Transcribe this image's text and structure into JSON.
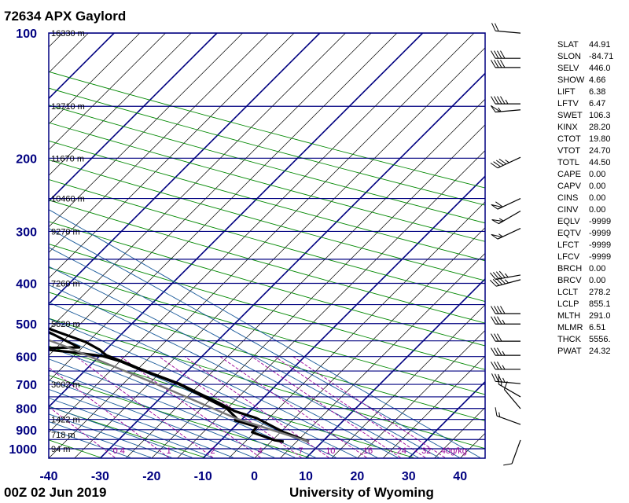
{
  "header": {
    "title": "72634 APX Gaylord"
  },
  "footer": {
    "date": "00Z 02 Jun 2019",
    "source": "University of Wyoming"
  },
  "stats": [
    {
      "k": "SLAT",
      "v": "44.91"
    },
    {
      "k": "SLON",
      "v": "-84.71"
    },
    {
      "k": "SELV",
      "v": "446.0"
    },
    {
      "k": "SHOW",
      "v": "4.66"
    },
    {
      "k": "LIFT",
      "v": "6.38"
    },
    {
      "k": "LFTV",
      "v": "6.47"
    },
    {
      "k": "SWET",
      "v": "106.3"
    },
    {
      "k": "KINX",
      "v": "28.20"
    },
    {
      "k": "CTOT",
      "v": "19.80"
    },
    {
      "k": "VTOT",
      "v": "24.70"
    },
    {
      "k": "TOTL",
      "v": "44.50"
    },
    {
      "k": "CAPE",
      "v": "0.00"
    },
    {
      "k": "CAPV",
      "v": "0.00"
    },
    {
      "k": "CINS",
      "v": "0.00"
    },
    {
      "k": "CINV",
      "v": "0.00"
    },
    {
      "k": "EQLV",
      "v": "-9999"
    },
    {
      "k": "EQTV",
      "v": "-9999"
    },
    {
      "k": "LFCT",
      "v": "-9999"
    },
    {
      "k": "LFCV",
      "v": "-9999"
    },
    {
      "k": "BRCH",
      "v": "0.00"
    },
    {
      "k": "BRCV",
      "v": "0.00"
    },
    {
      "k": "LCLT",
      "v": "278.2"
    },
    {
      "k": "LCLP",
      "v": "855.1"
    },
    {
      "k": "MLTH",
      "v": "291.0"
    },
    {
      "k": "MLMR",
      "v": "6.51"
    },
    {
      "k": "THCK",
      "v": "5556."
    },
    {
      "k": "PWAT",
      "v": "24.32"
    }
  ],
  "colors": {
    "axis": "#000080",
    "isobar": "#000080",
    "isotherm": "#000000",
    "dry_adiabat": "#008800",
    "moist_adiabat": "#1a5a9a",
    "mixing_ratio": "#990099",
    "trace": "#000000",
    "parcel": "#777777"
  },
  "chart_data": {
    "type": "line",
    "subtype": "skew-t log-p",
    "xlabel": "Temperature (C)",
    "ylabel": "Pressure (hPa)",
    "xlim": [
      -40,
      45
    ],
    "ylim": [
      1000,
      100
    ],
    "x_ticks": [
      "-40",
      "-30",
      "-20",
      "-10",
      "0",
      "10",
      "20",
      "30",
      "40"
    ],
    "x_tick_values": [
      -40,
      -30,
      -20,
      -10,
      0,
      10,
      20,
      30,
      40
    ],
    "y_ticks": [
      "100",
      "200",
      "300",
      "400",
      "500",
      "600",
      "700",
      "800",
      "900",
      "1000"
    ],
    "y_tick_values": [
      100,
      200,
      300,
      400,
      500,
      600,
      700,
      800,
      900,
      1000
    ],
    "height_labels": [
      {
        "p": 100,
        "text": "16330 m"
      },
      {
        "p": 150,
        "text": "13710 m"
      },
      {
        "p": 200,
        "text": "11670 m"
      },
      {
        "p": 250,
        "text": "10460 m"
      },
      {
        "p": 300,
        "text": "9270 m"
      },
      {
        "p": 400,
        "text": "7260 m"
      },
      {
        "p": 500,
        "text": "5620 m"
      },
      {
        "p": 700,
        "text": "3002 m"
      },
      {
        "p": 850,
        "text": "1422 m"
      },
      {
        "p": 925,
        "text": "718 m"
      },
      {
        "p": 1000,
        "text": "94 m"
      }
    ],
    "mixing_ratio_labels": [
      "0.4",
      "1",
      "2",
      "4",
      "7",
      "10",
      "16",
      "24",
      "32",
      "40g/kg"
    ],
    "mixing_ratio_values": [
      0.4,
      1,
      2,
      4,
      7,
      10,
      16,
      24,
      32,
      40
    ],
    "series": [
      {
        "name": "temperature",
        "p": [
          961.6,
          912.6,
          843.8,
          811.3,
          776.8,
          696.8,
          644.1,
          625.0,
          595.7,
          577.7,
          553.3,
          518.3,
          475.1,
          444.9,
          411.4,
          387.1,
          353.3,
          328.0,
          300.7,
          269.8,
          250.5,
          223.6,
          215.1,
          205.0,
          198.9,
          186.3,
          174.5,
          162.1,
          149.9,
          142.3,
          135.6,
          126.0,
          122.1,
          113.9,
          107.2,
          104.4,
          100.0
        ],
        "t": [
          13.8,
          10.8,
          8.2,
          5.3,
          3.9,
          -0.2,
          -4.8,
          -6.2,
          -8.8,
          -9.0,
          -10.2,
          -14.3,
          -18.9,
          -21.7,
          -25.9,
          -28.8,
          -33.9,
          -38.5,
          -43.5,
          -49.5,
          -53.6,
          -58.5,
          -59.4,
          -56.8,
          -57.6,
          -55.0,
          -55.6,
          -55.1,
          -54.2,
          -53.0,
          -50.7,
          -51.9,
          -52.1,
          -51.9,
          -54.5,
          -53.5,
          -54.7
        ]
      },
      {
        "name": "dewpoint",
        "p": [
          961.6,
          953.3,
          912.6,
          885.2,
          855.0,
          843.8,
          800.9,
          696.8,
          644.1,
          616.7,
          598.3,
          585.4,
          572.7,
          570.2,
          525.1,
          513.8,
          507.1,
          485.4,
          475.1,
          464.8,
          454.7,
          416.8,
          399.0,
          390.5,
          362.6,
          358.0,
          316.9,
          300.7,
          263.9,
          253.8,
          236.7,
          209.6,
          201.5,
          192.0,
          186.3,
          167.1,
          149.9,
          143.4,
          135.6,
          126.0,
          114.4,
          107.2,
          102.6,
          100.0
        ],
        "t": [
          8.9,
          7.4,
          4.6,
          6.6,
          3.6,
          4.3,
          4.3,
          -0.4,
          -5.0,
          -7.1,
          -9.7,
          -15.1,
          -21.5,
          -12.5,
          -15.4,
          -19.2,
          -17.5,
          -19.4,
          -22.9,
          -22.9,
          -25.0,
          -29.3,
          -32.0,
          -35.4,
          -38.8,
          -41.2,
          -47.8,
          -52.5,
          -58.7,
          -62.3,
          -64.2,
          -69.8,
          -75.9,
          -77.6,
          -80.1,
          -82.4,
          -84.3,
          -83.9,
          -82.8,
          -82.8,
          -82.7,
          -84.3,
          -83.9,
          -84.5
        ]
      },
      {
        "name": "parcel",
        "p": [
          961.6,
          847.5,
          693.6,
          565.3,
          435.3,
          345.7,
          250.5,
          190.4,
          128.7,
          100.4
        ],
        "t": [
          13.8,
          4.3,
          -5.0,
          -15.2,
          -30.5,
          -44.3,
          -64.8,
          -80.1,
          -100.7,
          -112.2
        ]
      }
    ],
    "winds": [
      {
        "p": 100,
        "dir": 275,
        "spd": 20
      },
      {
        "p": 115,
        "dir": 270,
        "spd": 40
      },
      {
        "p": 121,
        "dir": 270,
        "spd": 40
      },
      {
        "p": 148,
        "dir": 270,
        "spd": 45
      },
      {
        "p": 153,
        "dir": 265,
        "spd": 55
      },
      {
        "p": 199,
        "dir": 245,
        "spd": 45
      },
      {
        "p": 250,
        "dir": 245,
        "spd": 60
      },
      {
        "p": 268,
        "dir": 240,
        "spd": 55
      },
      {
        "p": 295,
        "dir": 245,
        "spd": 55
      },
      {
        "p": 382,
        "dir": 260,
        "spd": 45
      },
      {
        "p": 392,
        "dir": 255,
        "spd": 45
      },
      {
        "p": 473,
        "dir": 270,
        "spd": 40
      },
      {
        "p": 501,
        "dir": 270,
        "spd": 35
      },
      {
        "p": 551,
        "dir": 270,
        "spd": 30
      },
      {
        "p": 596,
        "dir": 270,
        "spd": 35
      },
      {
        "p": 644,
        "dir": 270,
        "spd": 35
      },
      {
        "p": 697,
        "dir": 275,
        "spd": 35
      },
      {
        "p": 750,
        "dir": 300,
        "spd": 15
      },
      {
        "p": 801,
        "dir": 320,
        "spd": 10
      },
      {
        "p": 874,
        "dir": 290,
        "spd": 15
      },
      {
        "p": 953,
        "dir": 200,
        "spd": 10
      }
    ]
  }
}
